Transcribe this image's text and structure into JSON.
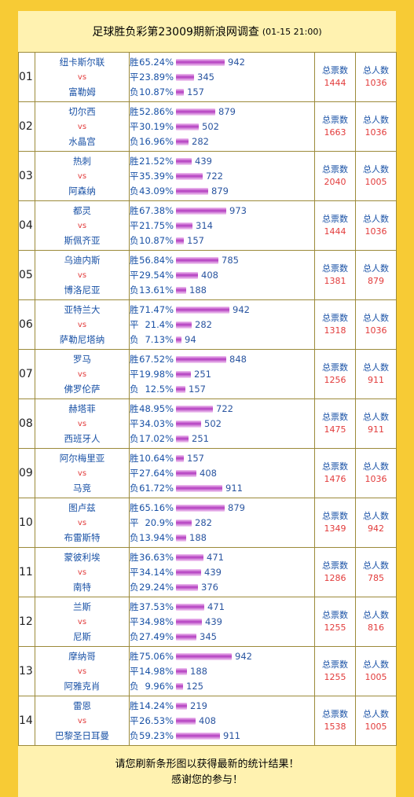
{
  "header": {
    "title": "足球胜负彩第23009期新浪网调查",
    "date": "(01-15 21:00)"
  },
  "labels": {
    "win": "胜",
    "draw": "平",
    "lose": "负",
    "vs": "vs",
    "total_votes": "总票数",
    "total_people": "总人数"
  },
  "matches": [
    {
      "no": "01",
      "home": "纽卡斯尔联",
      "away": "富勒姆",
      "win_pct": "65.24%",
      "win": "942",
      "draw_pct": "23.89%",
      "draw": "345",
      "lose_pct": "10.87%",
      "lose": "157",
      "votes": "1444",
      "people": "1036"
    },
    {
      "no": "02",
      "home": "切尔西",
      "away": "水晶宫",
      "win_pct": "52.86%",
      "win": "879",
      "draw_pct": "30.19%",
      "draw": "502",
      "lose_pct": "16.96%",
      "lose": "282",
      "votes": "1663",
      "people": "1036"
    },
    {
      "no": "03",
      "home": "热刺",
      "away": "阿森纳",
      "win_pct": "21.52%",
      "win": "439",
      "draw_pct": "35.39%",
      "draw": "722",
      "lose_pct": "43.09%",
      "lose": "879",
      "votes": "2040",
      "people": "1005"
    },
    {
      "no": "04",
      "home": "都灵",
      "away": "斯佩齐亚",
      "win_pct": "67.38%",
      "win": "973",
      "draw_pct": "21.75%",
      "draw": "314",
      "lose_pct": "10.87%",
      "lose": "157",
      "votes": "1444",
      "people": "1036"
    },
    {
      "no": "05",
      "home": "乌迪内斯",
      "away": "博洛尼亚",
      "win_pct": "56.84%",
      "win": "785",
      "draw_pct": "29.54%",
      "draw": "408",
      "lose_pct": "13.61%",
      "lose": "188",
      "votes": "1381",
      "people": "879"
    },
    {
      "no": "06",
      "home": "亚特兰大",
      "away": "萨勒尼塔纳",
      "win_pct": "71.47%",
      "win": "942",
      "draw_pct": "21.4%",
      "draw": "282",
      "lose_pct": "7.13%",
      "lose": "94",
      "votes": "1318",
      "people": "1036"
    },
    {
      "no": "07",
      "home": "罗马",
      "away": "佛罗伦萨",
      "win_pct": "67.52%",
      "win": "848",
      "draw_pct": "19.98%",
      "draw": "251",
      "lose_pct": "12.5%",
      "lose": "157",
      "votes": "1256",
      "people": "911"
    },
    {
      "no": "08",
      "home": "赫塔菲",
      "away": "西班牙人",
      "win_pct": "48.95%",
      "win": "722",
      "draw_pct": "34.03%",
      "draw": "502",
      "lose_pct": "17.02%",
      "lose": "251",
      "votes": "1475",
      "people": "911"
    },
    {
      "no": "09",
      "home": "阿尔梅里亚",
      "away": "马竞",
      "win_pct": "10.64%",
      "win": "157",
      "draw_pct": "27.64%",
      "draw": "408",
      "lose_pct": "61.72%",
      "lose": "911",
      "votes": "1476",
      "people": "1036"
    },
    {
      "no": "10",
      "home": "图卢兹",
      "away": "布雷斯特",
      "win_pct": "65.16%",
      "win": "879",
      "draw_pct": "20.9%",
      "draw": "282",
      "lose_pct": "13.94%",
      "lose": "188",
      "votes": "1349",
      "people": "942"
    },
    {
      "no": "11",
      "home": "蒙彼利埃",
      "away": "南特",
      "win_pct": "36.63%",
      "win": "471",
      "draw_pct": "34.14%",
      "draw": "439",
      "lose_pct": "29.24%",
      "lose": "376",
      "votes": "1286",
      "people": "785"
    },
    {
      "no": "12",
      "home": "兰斯",
      "away": "尼斯",
      "win_pct": "37.53%",
      "win": "471",
      "draw_pct": "34.98%",
      "draw": "439",
      "lose_pct": "27.49%",
      "lose": "345",
      "votes": "1255",
      "people": "816"
    },
    {
      "no": "13",
      "home": "摩纳哥",
      "away": "阿雅克肖",
      "win_pct": "75.06%",
      "win": "942",
      "draw_pct": "14.98%",
      "draw": "188",
      "lose_pct": "9.96%",
      "lose": "125",
      "votes": "1255",
      "people": "1005"
    },
    {
      "no": "14",
      "home": "雷恩",
      "away": "巴黎圣日耳曼",
      "win_pct": "14.24%",
      "win": "219",
      "draw_pct": "26.53%",
      "draw": "408",
      "lose_pct": "59.23%",
      "lose": "911",
      "votes": "1538",
      "people": "1005"
    }
  ],
  "footer": {
    "line1": "请您刷新条形图以获得最新的统计结果！",
    "line2": "感谢您的参与！"
  }
}
